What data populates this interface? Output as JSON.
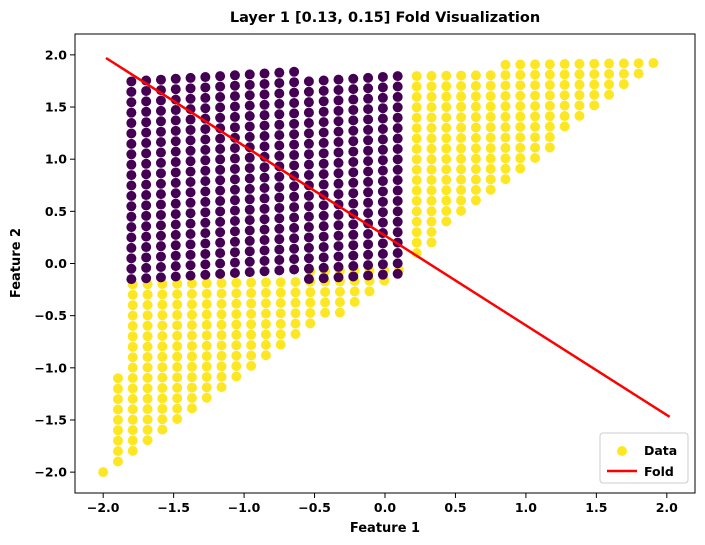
{
  "chart_data": {
    "type": "scatter",
    "title": "Layer 1 [0.13, 0.15] Fold Visualization",
    "xlabel": "Feature 1",
    "ylabel": "Feature 2",
    "xlim": [
      -2.2,
      2.2
    ],
    "ylim": [
      -2.2,
      2.2
    ],
    "xticks": [
      -2.0,
      -1.5,
      -1.0,
      -0.5,
      0.0,
      0.5,
      1.0,
      1.5,
      2.0
    ],
    "xtick_labels": [
      "−2.0",
      "−1.5",
      "−1.0",
      "−0.5",
      "0.0",
      "0.5",
      "1.0",
      "1.5",
      "2.0"
    ],
    "yticks": [
      -2.0,
      -1.5,
      -1.0,
      -0.5,
      0.0,
      0.5,
      1.0,
      1.5,
      2.0
    ],
    "ytick_labels": [
      "−2.0",
      "−1.5",
      "−1.0",
      "−0.5",
      "0.0",
      "0.5",
      "1.0",
      "1.5",
      "2.0"
    ],
    "grid": false,
    "legend_position": "lower-right",
    "colors": {
      "inside": "#440154",
      "outside": "#fde725",
      "fold": "#ff0000"
    },
    "series": [
      {
        "name": "Data",
        "kind": "scatter",
        "note_regions": {
          "lower_triangle": {
            "vertices": [
              [
                -2.0,
                -2.0
              ],
              [
                -1.8,
                -0.2
              ],
              [
                0.2,
                0.0
              ]
            ]
          },
          "upper_triangle": {
            "vertices": [
              [
                0.15,
                0.0
              ],
              [
                0.15,
                1.85
              ],
              [
                2.0,
                2.0
              ]
            ]
          },
          "inside_block": {
            "x_range": [
              -1.8,
              0.15
            ],
            "y_range": [
              -0.15,
              1.8
            ]
          }
        }
      },
      {
        "name": "Fold",
        "kind": "line",
        "x": [
          -1.98,
          2.02
        ],
        "y": [
          1.97,
          -1.47
        ]
      }
    ]
  }
}
